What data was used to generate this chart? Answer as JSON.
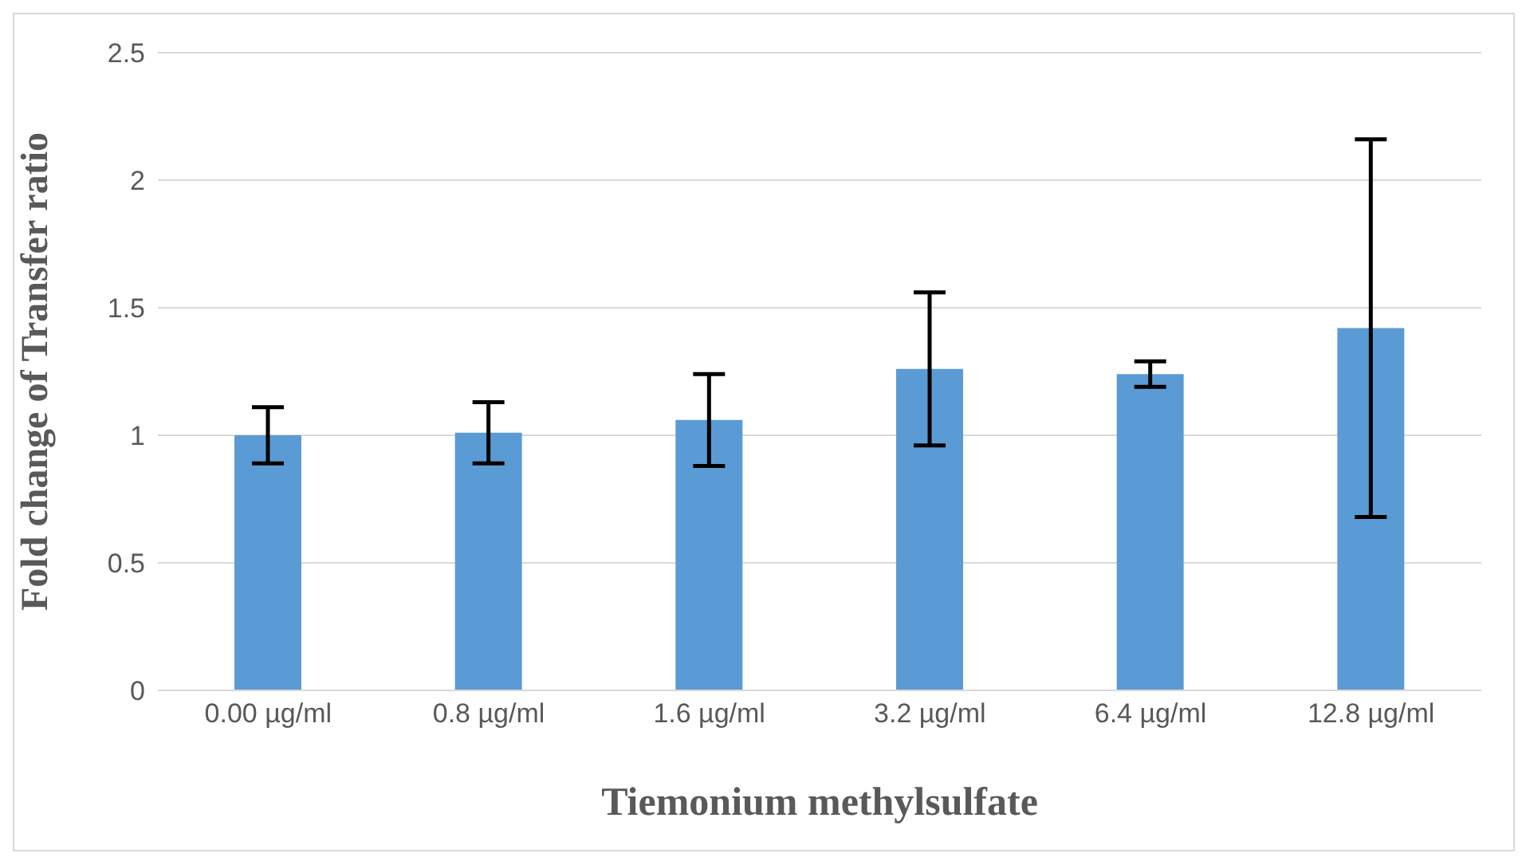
{
  "chart_data": {
    "type": "bar",
    "xlabel": "Tiemonium methylsulfate",
    "ylabel": "Fold change of Transfer ratio",
    "categories": [
      "0.00 µg/ml",
      "0.8 µg/ml",
      "1.6 µg/ml",
      "3.2 µg/ml",
      "6.4 µg/ml",
      "12.8 µg/ml"
    ],
    "values": [
      1.0,
      1.01,
      1.06,
      1.26,
      1.24,
      1.42
    ],
    "errors": [
      0.11,
      0.12,
      0.18,
      0.3,
      0.05,
      0.74
    ],
    "color": "#5b9bd5",
    "ylim": [
      0,
      2.5
    ],
    "yticks": [
      0,
      0.5,
      1,
      1.5,
      2,
      2.5
    ],
    "grid": "y",
    "legend": false
  }
}
